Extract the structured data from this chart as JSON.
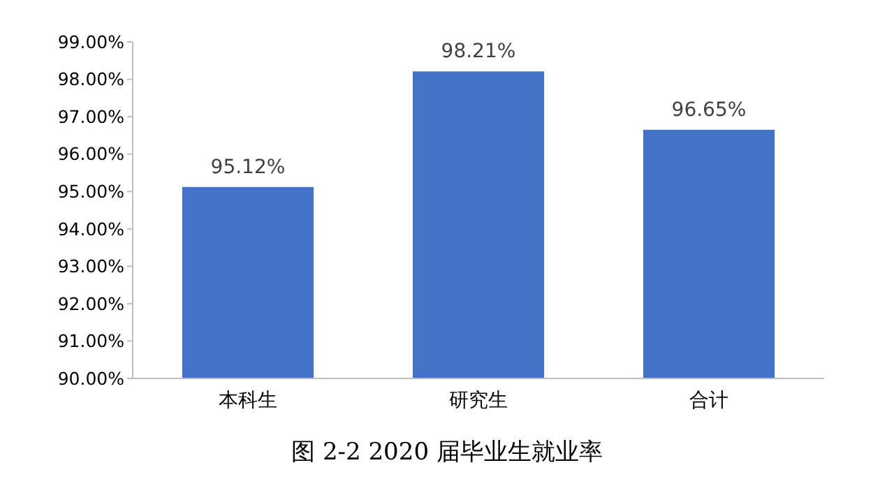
{
  "chart_data": {
    "type": "bar",
    "title": "图 2-2 2020 届毕业生就业率",
    "categories": [
      "本科生",
      "研究生",
      "合计"
    ],
    "values": [
      95.12,
      98.21,
      96.65
    ],
    "value_labels": [
      "95.12%",
      "98.21%",
      "96.65%"
    ],
    "color": "#4472c4",
    "ylim": [
      90,
      99
    ],
    "yticks": [
      {
        "value": 90,
        "label": "90.00%"
      },
      {
        "value": 91,
        "label": "91.00%"
      },
      {
        "value": 92,
        "label": "92.00%"
      },
      {
        "value": 93,
        "label": "93.00%"
      },
      {
        "value": 94,
        "label": "94.00%"
      },
      {
        "value": 95,
        "label": "95.00%"
      },
      {
        "value": 96,
        "label": "96.00%"
      },
      {
        "value": 97,
        "label": "97.00%"
      },
      {
        "value": 98,
        "label": "98.00%"
      },
      {
        "value": 99,
        "label": "99.00%"
      }
    ],
    "grid": false
  }
}
